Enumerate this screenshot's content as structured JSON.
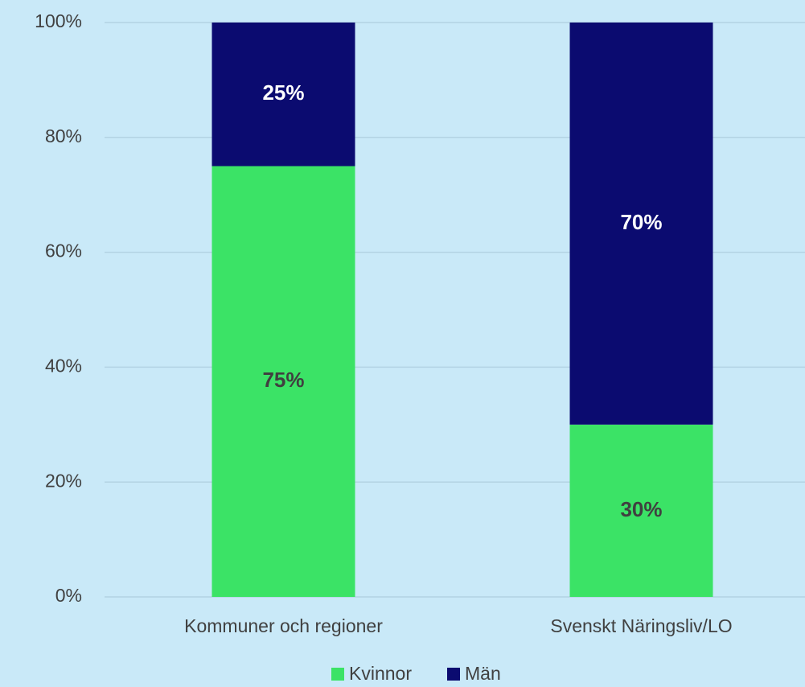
{
  "chart_data": {
    "type": "stacked_bar",
    "categories": [
      "Kommuner och regioner",
      "Svenskt Näringsliv/LO"
    ],
    "series": [
      {
        "name": "Kvinnor",
        "color": "#3be366",
        "values": [
          75,
          30
        ],
        "value_labels": [
          "75%",
          "30%"
        ]
      },
      {
        "name": "Män",
        "color": "#0b0b70",
        "values": [
          25,
          70
        ],
        "value_labels": [
          "25%",
          "70%"
        ]
      }
    ],
    "ylim": [
      0,
      100
    ],
    "yticks": [
      {
        "value": 0,
        "label": "0%"
      },
      {
        "value": 20,
        "label": "20%"
      },
      {
        "value": 40,
        "label": "40%"
      },
      {
        "value": 60,
        "label": "60%"
      },
      {
        "value": 80,
        "label": "80%"
      },
      {
        "value": 100,
        "label": "100%"
      }
    ],
    "grid": true,
    "legend": "bottom"
  }
}
